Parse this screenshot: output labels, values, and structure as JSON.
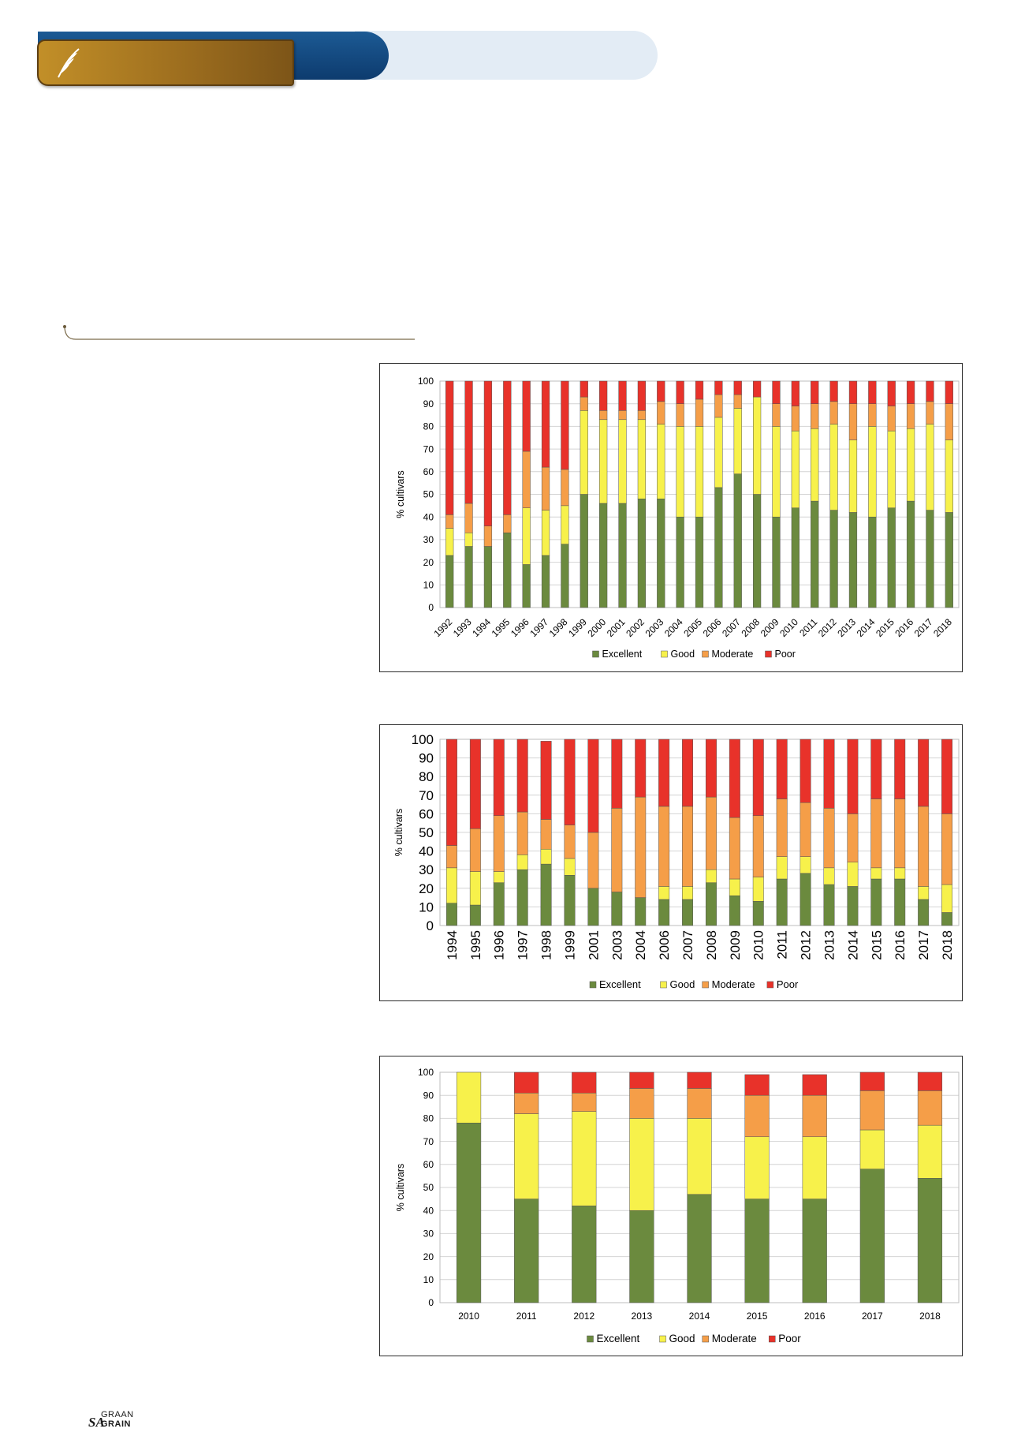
{
  "header": {
    "logo_icon": "wheat-ear-icon",
    "logo_text": ""
  },
  "colors": {
    "excellent": "#6b8a3e",
    "good": "#f7f14b",
    "moderate": "#f59e48",
    "poor": "#e8322a"
  },
  "footer": {
    "brand_sa": "SA",
    "brand_graan": "GRAAN",
    "brand_grain": "GRAIN"
  },
  "chart_data": [
    {
      "type": "bar",
      "stacked": true,
      "title": "",
      "xlabel": "",
      "ylabel": "% cultivars",
      "ylim": [
        0,
        100
      ],
      "yticks": [
        0,
        10,
        20,
        30,
        40,
        50,
        60,
        70,
        80,
        90,
        100
      ],
      "legend": "bottom",
      "categories": [
        "1992",
        "1993",
        "1994",
        "1995",
        "1996",
        "1997",
        "1998",
        "1999",
        "2000",
        "2001",
        "2002",
        "2003",
        "2004",
        "2005",
        "2006",
        "2007",
        "2008",
        "2009",
        "2010",
        "2011",
        "2012",
        "2013",
        "2014",
        "2015",
        "2016",
        "2017",
        "2018"
      ],
      "series": [
        {
          "name": "Excellent",
          "values": [
            23,
            27,
            27,
            33,
            19,
            23,
            28,
            50,
            46,
            46,
            48,
            48,
            40,
            40,
            53,
            59,
            50,
            40,
            44,
            47,
            43,
            42,
            40,
            44,
            47,
            43,
            42
          ]
        },
        {
          "name": "Good",
          "values": [
            12,
            6,
            0,
            0,
            25,
            20,
            17,
            37,
            37,
            37,
            35,
            33,
            40,
            40,
            31,
            29,
            43,
            40,
            34,
            32,
            38,
            32,
            40,
            34,
            32,
            38,
            32
          ]
        },
        {
          "name": "Moderate",
          "values": [
            6,
            13,
            9,
            8,
            25,
            19,
            16,
            6,
            4,
            4,
            4,
            10,
            10,
            12,
            10,
            6,
            0,
            10,
            11,
            11,
            10,
            16,
            10,
            11,
            11,
            10,
            16
          ]
        },
        {
          "name": "Poor",
          "values": [
            59,
            54,
            64,
            59,
            31,
            38,
            39,
            7,
            13,
            13,
            13,
            9,
            10,
            8,
            6,
            6,
            7,
            10,
            11,
            10,
            9,
            10,
            10,
            11,
            10,
            9,
            10
          ]
        }
      ]
    },
    {
      "type": "bar",
      "stacked": true,
      "title": "",
      "xlabel": "",
      "ylabel": "% cultivars",
      "ylim": [
        0,
        100
      ],
      "yticks": [
        0,
        10,
        20,
        30,
        40,
        50,
        60,
        70,
        80,
        90,
        100
      ],
      "legend": "bottom",
      "categories": [
        "1994",
        "1995",
        "1996",
        "1997",
        "1998",
        "1999",
        "2001",
        "2003",
        "2004",
        "2006",
        "2007",
        "2008",
        "2009",
        "2010",
        "2011",
        "2012",
        "2013",
        "2014",
        "2015",
        "2016",
        "2017",
        "2018"
      ],
      "series": [
        {
          "name": "Excellent",
          "values": [
            12,
            11,
            23,
            30,
            33,
            27,
            20,
            18,
            15,
            14,
            14,
            23,
            16,
            13,
            25,
            28,
            22,
            21,
            25,
            25,
            14,
            7
          ]
        },
        {
          "name": "Good",
          "values": [
            19,
            18,
            6,
            8,
            8,
            9,
            0,
            0,
            0,
            7,
            7,
            7,
            9,
            13,
            12,
            9,
            9,
            13,
            6,
            6,
            7,
            15
          ]
        },
        {
          "name": "Moderate",
          "values": [
            12,
            23,
            30,
            23,
            16,
            18,
            30,
            45,
            54,
            43,
            43,
            39,
            33,
            33,
            31,
            29,
            32,
            26,
            37,
            37,
            43,
            38
          ]
        },
        {
          "name": "Poor",
          "values": [
            57,
            48,
            41,
            39,
            42,
            46,
            50,
            37,
            31,
            36,
            36,
            31,
            42,
            41,
            32,
            34,
            37,
            40,
            32,
            32,
            36,
            40
          ]
        }
      ]
    },
    {
      "type": "bar",
      "stacked": true,
      "title": "",
      "xlabel": "",
      "ylabel": "% cultivars",
      "ylim": [
        0,
        100
      ],
      "yticks": [
        0,
        10,
        20,
        30,
        40,
        50,
        60,
        70,
        80,
        90,
        100
      ],
      "legend": "bottom",
      "categories": [
        "2010",
        "2011",
        "2012",
        "2013",
        "2014",
        "2015",
        "2016",
        "2017",
        "2018"
      ],
      "series": [
        {
          "name": "Excellent",
          "values": [
            78,
            45,
            42,
            40,
            47,
            45,
            45,
            58,
            54
          ]
        },
        {
          "name": "Good",
          "values": [
            22,
            37,
            41,
            40,
            33,
            27,
            27,
            17,
            23
          ]
        },
        {
          "name": "Moderate",
          "values": [
            0,
            9,
            8,
            13,
            13,
            18,
            18,
            17,
            15
          ]
        },
        {
          "name": "Poor",
          "values": [
            0,
            9,
            9,
            7,
            7,
            9,
            9,
            8,
            8
          ]
        }
      ]
    }
  ]
}
